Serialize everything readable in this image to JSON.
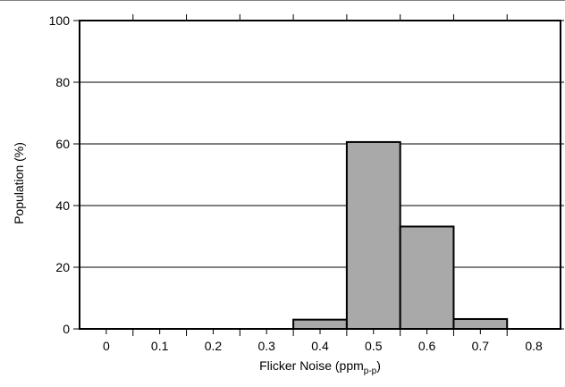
{
  "chart_data": {
    "type": "bar",
    "title": "",
    "xlabel": "Flicker Noise (ppm",
    "xlabel_subscript": "p-p",
    "xlabel_suffix": ")",
    "ylabel": "Population (%)",
    "xlim": [
      -0.05,
      0.85
    ],
    "ylim": [
      0,
      100
    ],
    "x_ticks": [
      0,
      0.1,
      0.2,
      0.3,
      0.4,
      0.5,
      0.6,
      0.7,
      0.8
    ],
    "x_tick_labels": [
      "0",
      "0.1",
      "0.2",
      "0.3",
      "0.4",
      "0.5",
      "0.6",
      "0.7",
      "0.8"
    ],
    "y_ticks": [
      0,
      20,
      40,
      60,
      80,
      100
    ],
    "y_tick_labels": [
      "0",
      "20",
      "40",
      "60",
      "80",
      "100"
    ],
    "grid": "horizontal",
    "bin_width": 0.1,
    "bin_centers": [
      0.4,
      0.5,
      0.6,
      0.7
    ],
    "values": [
      3,
      60.6,
      33.2,
      3.2
    ],
    "colors": {
      "bar_fill": "#a9a9a9",
      "bar_edge": "#000000",
      "grid": "#000000"
    }
  }
}
